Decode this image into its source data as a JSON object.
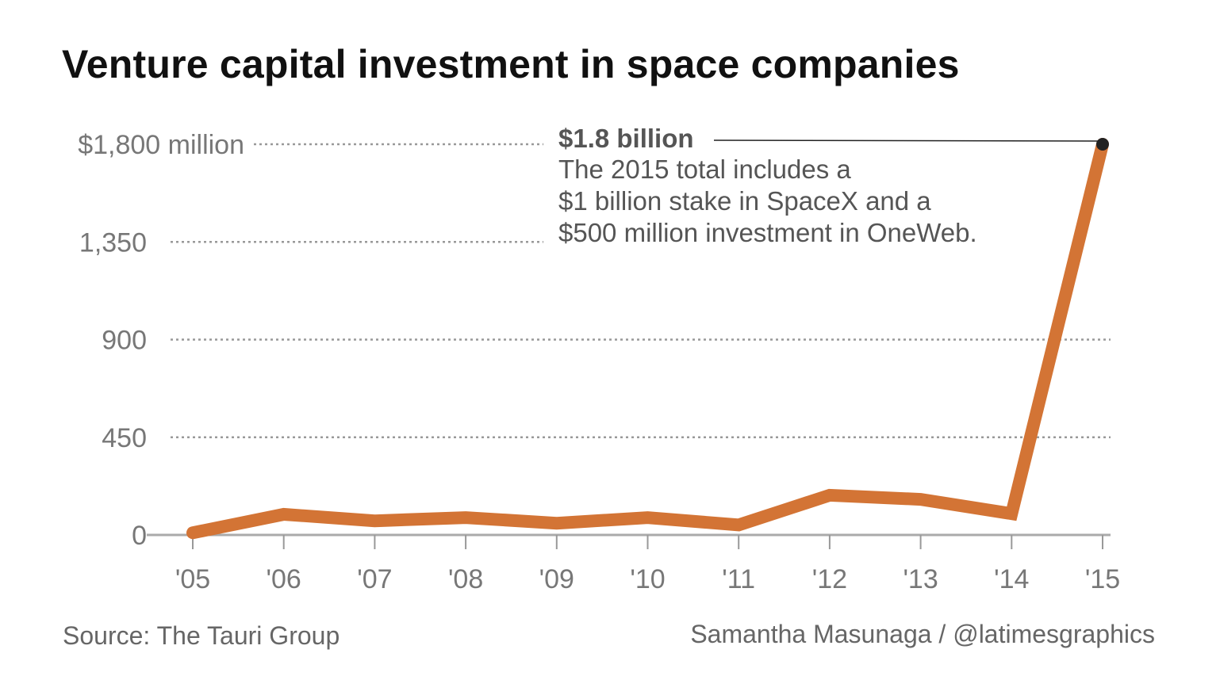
{
  "chart_data": {
    "type": "line",
    "title": "Venture capital investment in space companies",
    "categories": [
      "'05",
      "'06",
      "'07",
      "'08",
      "'09",
      "'10",
      "'11",
      "'12",
      "'13",
      "'14",
      "'15"
    ],
    "series": [
      {
        "values": [
          10,
          95,
          65,
          80,
          54,
          80,
          46,
          183,
          164,
          98,
          1800
        ],
        "color": "#d37435"
      }
    ],
    "ylim": [
      0,
      1800
    ],
    "yticks": [
      0,
      450,
      900,
      1350,
      1800
    ],
    "ytick_labels": [
      "0",
      "450",
      "900",
      "1,350",
      "$1,800 million"
    ],
    "grid": "dotted horizontal",
    "annotation": {
      "headline": "$1.8 billion",
      "lines": [
        "The 2015 total includes a",
        "$1 billion stake in SpaceX and a",
        "$500 million investment in OneWeb."
      ]
    }
  },
  "footer": {
    "source": "Source: The Tauri Group",
    "credit": "Samantha Masunaga / @latimesgraphics"
  }
}
